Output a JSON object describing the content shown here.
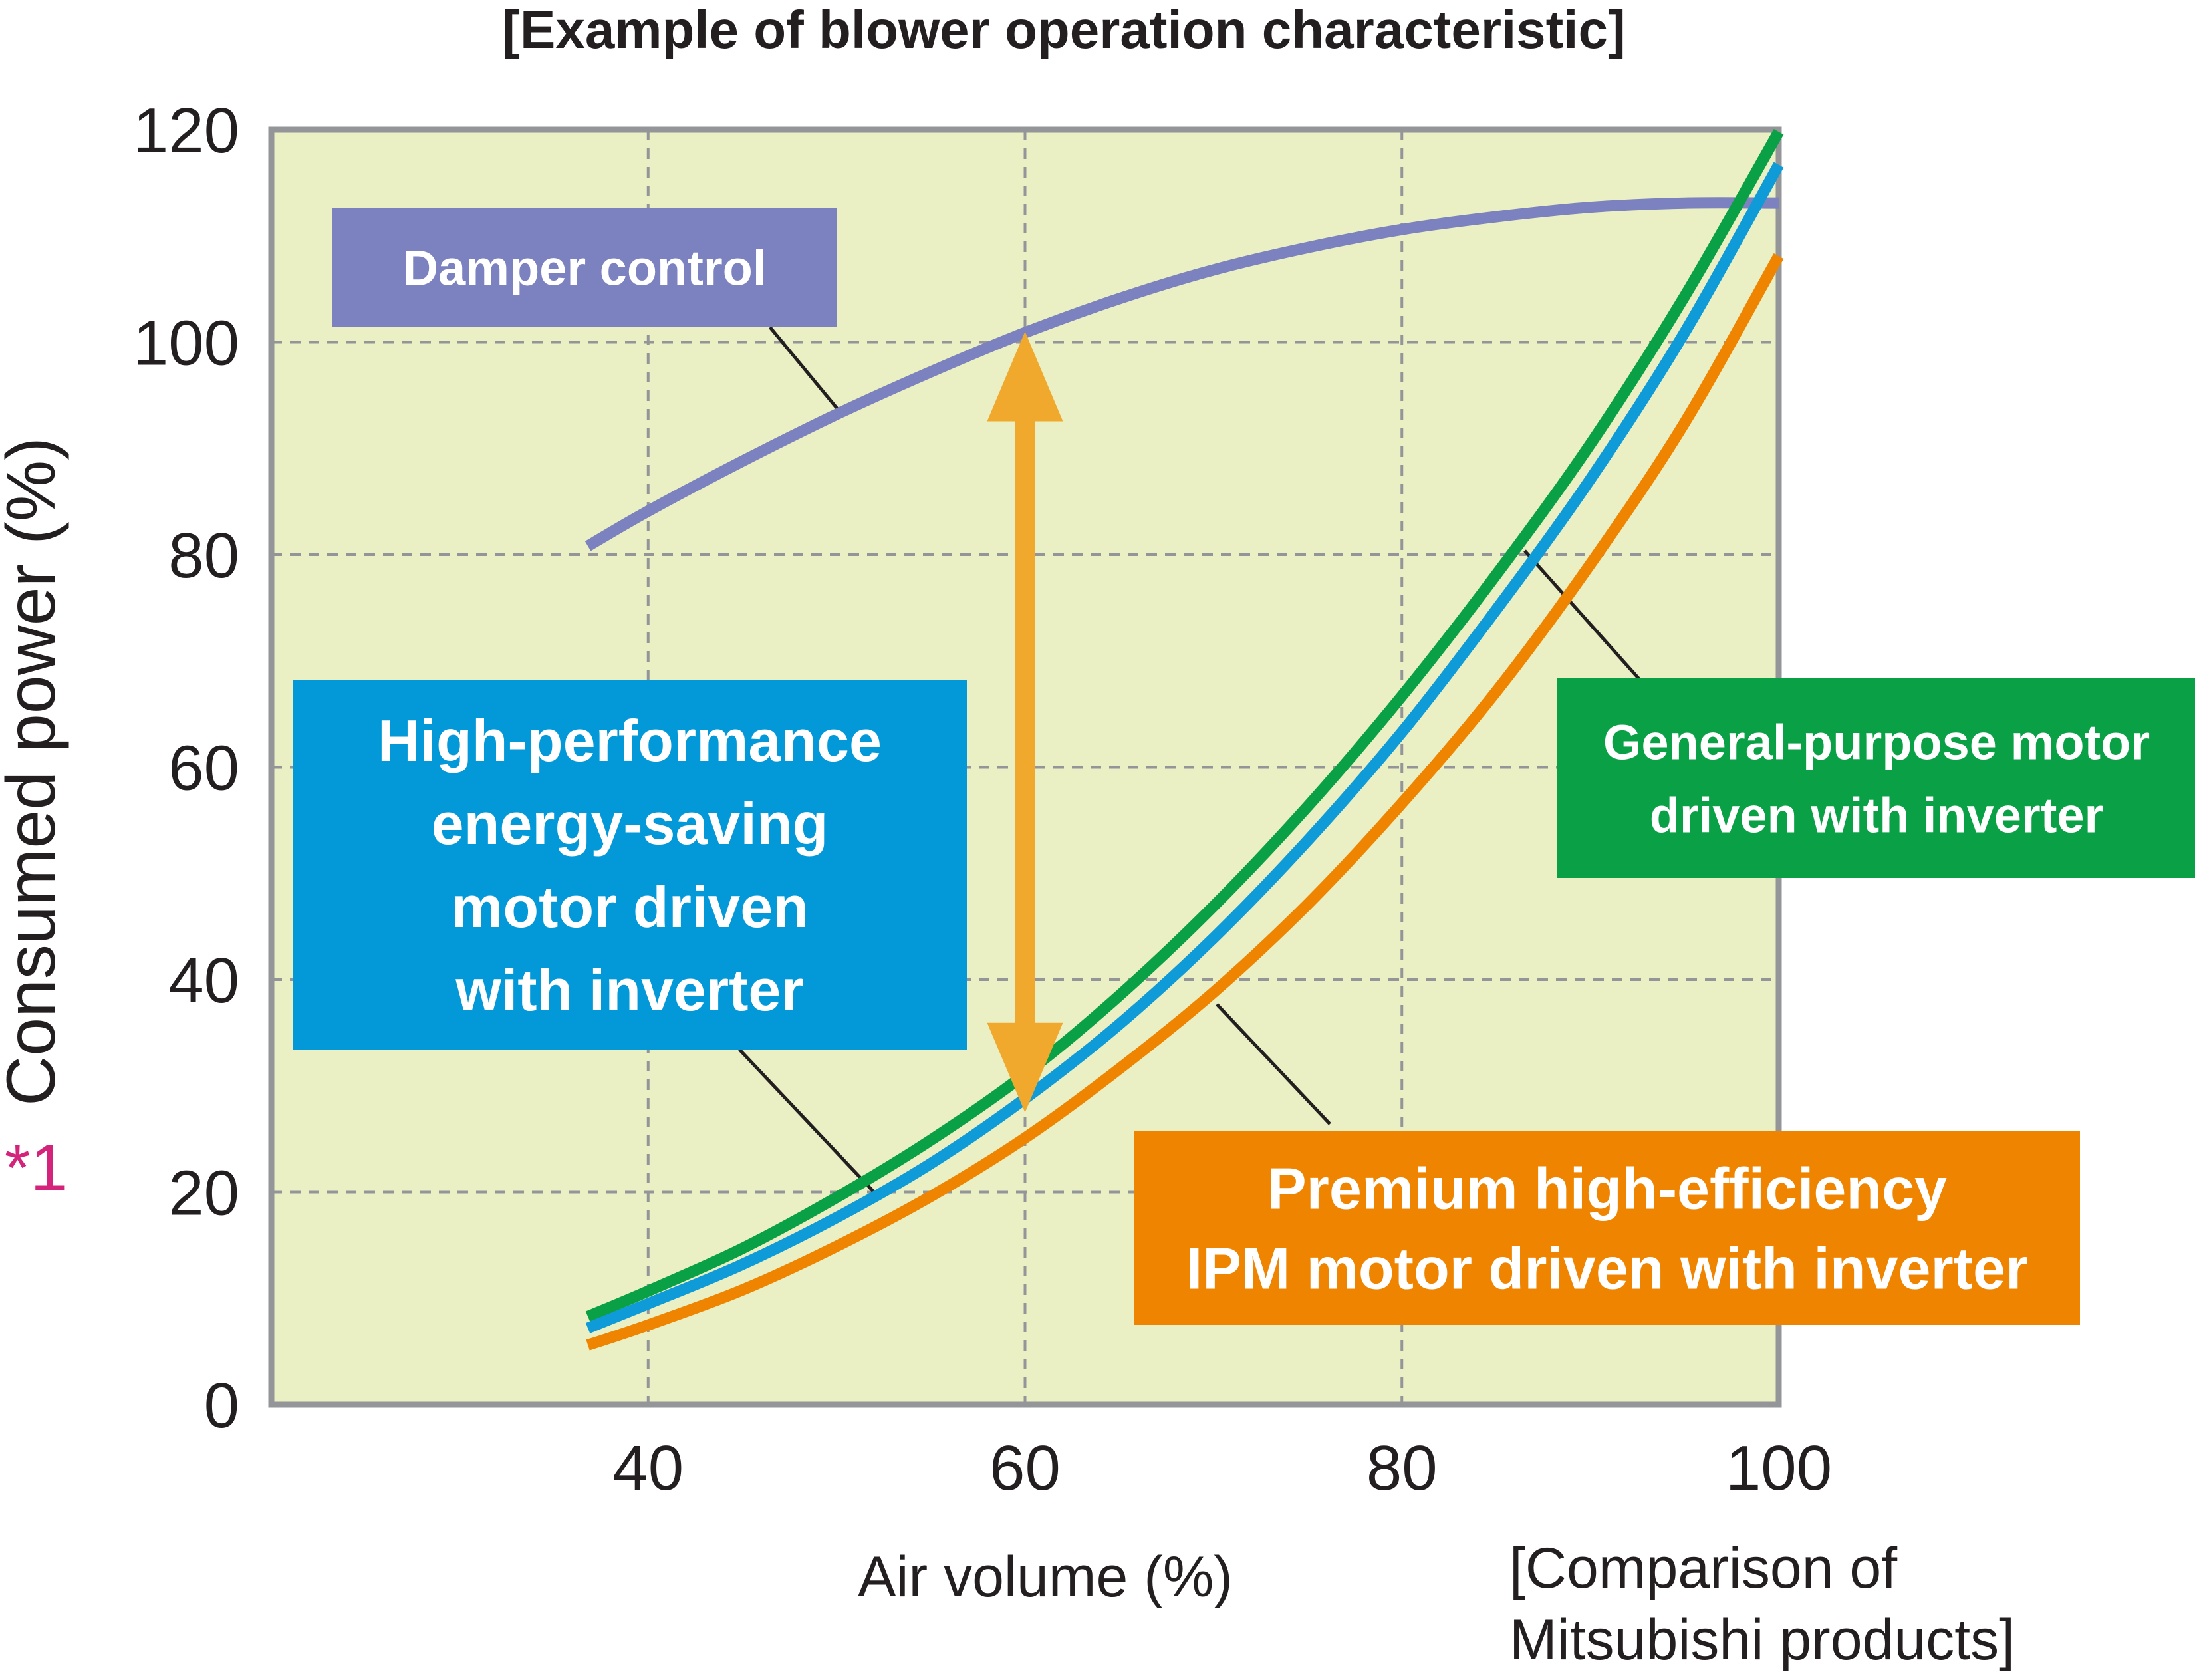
{
  "chart_data": {
    "type": "line",
    "title": "[Example of blower operation characteristic]",
    "xlabel": "Air volume (%)",
    "ylabel": "Consumed power (%)",
    "ylabel_note": "*1",
    "source_note": [
      "[Comparison of",
      "Mitsubishi products]"
    ],
    "xlim": [
      20,
      100
    ],
    "ylim": [
      0,
      120
    ],
    "xticks": [
      40,
      60,
      80,
      100
    ],
    "yticks": [
      0,
      20,
      40,
      60,
      80,
      100,
      120
    ],
    "grid": true,
    "colors": {
      "plot_background": "#eaf0c3",
      "frame": "#939598",
      "grid": "#939598",
      "arrow": "#f0a92c",
      "footnote": "#d4237a"
    },
    "series": [
      {
        "name": "Damper control",
        "color": "#7c81bf",
        "box_color": "#7c81bf",
        "label_lines": [
          "Damper control"
        ],
        "x": [
          36.8,
          40,
          45,
          50,
          55,
          60,
          65,
          70,
          75,
          80,
          85,
          90,
          95,
          100
        ],
        "y": [
          80.8,
          84.1,
          88.8,
          93.2,
          97.2,
          100.9,
          104.1,
          106.8,
          108.9,
          110.6,
          111.8,
          112.7,
          113.1,
          113.1
        ]
      },
      {
        "name": "General-purpose motor driven with inverter",
        "color": "#0aa046",
        "box_color": "#0aa046",
        "label_lines": [
          "General-purpose motor",
          "driven with inverter"
        ],
        "x": [
          36.8,
          40,
          45,
          50,
          55,
          60,
          65,
          70,
          75,
          80,
          85,
          90,
          95,
          100
        ],
        "y": [
          8.3,
          10.7,
          14.7,
          19.5,
          24.9,
          31.1,
          38.5,
          46.9,
          56.3,
          66.7,
          78.1,
          90.4,
          104.3,
          119.8
        ]
      },
      {
        "name": "High-performance energy-saving motor driven with inverter",
        "color": "#0f9ad8",
        "box_color": "#0398d8",
        "label_lines": [
          "High-performance",
          "energy-saving",
          "motor driven",
          "with inverter"
        ],
        "x": [
          36.8,
          40,
          45,
          50,
          55,
          60,
          65,
          70,
          75,
          80,
          85,
          90,
          95,
          100
        ],
        "y": [
          7.2,
          9.5,
          13.2,
          17.6,
          22.7,
          28.8,
          35.8,
          43.9,
          53.1,
          63.3,
          74.8,
          87.1,
          100.9,
          116.7
        ]
      },
      {
        "name": "Premium high-efficiency IPM motor driven with inverter",
        "color": "#ee8400",
        "box_color": "#ee8400",
        "label_lines": [
          "Premium high-efficiency",
          "IPM motor driven with inverter"
        ],
        "x": [
          36.8,
          40,
          45,
          50,
          55,
          60,
          65,
          70,
          75,
          80,
          85,
          90,
          95,
          100
        ],
        "y": [
          5.6,
          7.5,
          10.8,
          14.9,
          19.6,
          25.1,
          31.6,
          38.8,
          47.1,
          56.6,
          67.1,
          79.1,
          92.4,
          108.1
        ]
      }
    ],
    "arrow": {
      "x": 60,
      "y_from": 27.5,
      "y_to": 101
    }
  }
}
